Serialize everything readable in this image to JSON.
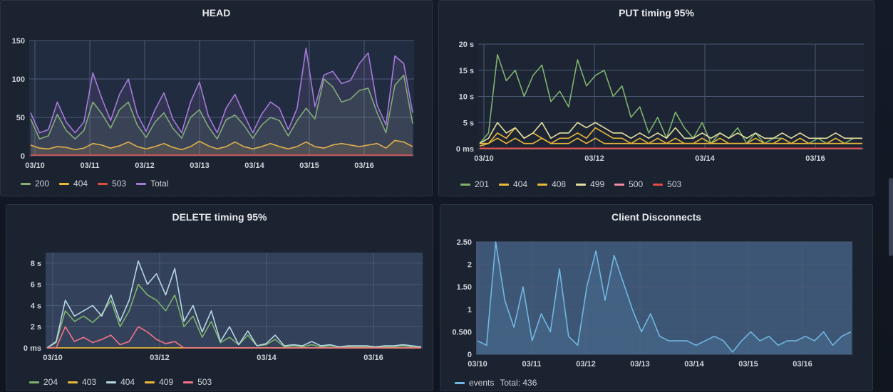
{
  "panels": {
    "head": {
      "title": "HEAD",
      "chart_data": {
        "type": "line",
        "title": "HEAD",
        "x_ticks": [
          "03/10",
          "03/11",
          "03/12",
          "03/13",
          "03/14",
          "03/15",
          "03/16"
        ],
        "y_ticks": [
          "0",
          "50",
          "100",
          "150"
        ],
        "ylim": [
          0,
          150
        ],
        "series": [
          {
            "name": "200",
            "color": "#7eb26d",
            "values": [
              48,
              22,
              26,
              54,
              33,
              22,
              33,
              70,
              55,
              36,
              60,
              70,
              40,
              24,
              44,
              56,
              36,
              23,
              50,
              60,
              38,
              22,
              47,
              53,
              40,
              23,
              40,
              50,
              46,
              26,
              46,
              62,
              48,
              100,
              90,
              70,
              74,
              85,
              88,
              56,
              30,
              92,
              105,
              42
            ]
          },
          {
            "name": "404",
            "color": "#eab839",
            "values": [
              14,
              10,
              9,
              12,
              11,
              8,
              10,
              16,
              14,
              10,
              13,
              18,
              12,
              9,
              12,
              16,
              11,
              8,
              12,
              19,
              13,
              9,
              12,
              18,
              12,
              9,
              12,
              16,
              12,
              9,
              12,
              18,
              12,
              10,
              14,
              16,
              14,
              12,
              14,
              16,
              10,
              20,
              18,
              12
            ]
          },
          {
            "name": "503",
            "color": "#e24d42",
            "values": [
              1,
              1,
              1,
              1,
              1,
              1,
              1,
              1,
              1,
              1,
              1,
              1,
              1,
              1,
              1,
              1,
              1,
              1,
              1,
              1,
              1,
              1,
              1,
              1,
              1,
              1,
              1,
              1,
              1,
              1,
              1,
              1,
              1,
              1,
              1,
              1,
              1,
              1,
              1,
              1,
              1,
              1,
              1,
              1
            ]
          },
          {
            "name": "Total",
            "color": "#a57bd8",
            "values": [
              56,
              30,
              34,
              70,
              44,
              30,
              44,
              108,
              75,
              46,
              80,
              100,
              54,
              32,
              60,
              82,
              48,
              30,
              70,
              96,
              52,
              30,
              62,
              80,
              54,
              30,
              54,
              70,
              62,
              34,
              62,
              140,
              64,
              105,
              110,
              94,
              98,
              120,
              134,
              66,
              40,
              130,
              120,
              56
            ]
          }
        ]
      },
      "legend": [
        {
          "label": "200",
          "color": "#7eb26d"
        },
        {
          "label": "404",
          "color": "#eab839"
        },
        {
          "label": "503",
          "color": "#e24d42"
        },
        {
          "label": "Total",
          "color": "#a57bd8"
        }
      ]
    },
    "put": {
      "title": "PUT timing 95%",
      "chart_data": {
        "type": "line",
        "title": "PUT timing 95%",
        "x_ticks": [
          "03/10",
          "03/12",
          "03/14",
          "03/16"
        ],
        "y_ticks": [
          "0 ms",
          "5 s",
          "10 s",
          "15 s",
          "20 s"
        ],
        "ylim": [
          0,
          20
        ],
        "series": [
          {
            "name": "201",
            "color": "#7eb26d",
            "values": [
              1,
              3,
              18,
              13,
              15,
              10,
              14,
              16,
              9,
              11,
              8,
              17,
              12,
              14,
              15,
              10,
              12,
              6,
              8,
              3,
              6,
              2,
              7,
              4,
              2,
              5,
              1,
              3,
              2,
              4,
              1,
              3,
              1,
              2,
              2,
              1,
              2,
              1,
              2,
              1,
              2,
              1,
              2,
              2
            ]
          },
          {
            "name": "404",
            "color": "#eab839",
            "values": [
              1,
              1,
              3,
              2,
              4,
              2,
              3,
              2,
              1,
              2,
              2,
              3,
              2,
              4,
              3,
              2,
              2,
              1,
              2,
              1,
              2,
              1,
              2,
              1,
              1,
              2,
              1,
              2,
              1,
              1,
              1,
              2,
              1,
              1,
              2,
              1,
              2,
              1,
              1,
              1,
              2,
              1,
              1,
              1
            ]
          },
          {
            "name": "408",
            "color": "#eab839",
            "values": [
              0.5,
              1,
              2,
              1,
              2,
              1,
              1,
              2,
              1,
              1,
              1,
              2,
              1,
              2,
              1,
              1,
              1,
              1,
              1,
              1,
              1,
              1,
              1,
              1,
              1,
              1,
              1,
              1,
              1,
              1,
              1,
              1,
              1,
              1,
              1,
              1,
              1,
              1,
              1,
              1,
              1,
              1,
              1,
              1
            ]
          },
          {
            "name": "499",
            "color": "#e5e0a0",
            "values": [
              1,
              2,
              5,
              3,
              4,
              2,
              3,
              5,
              2,
              3,
              3,
              5,
              4,
              5,
              4,
              3,
              3,
              2,
              3,
              2,
              3,
              2,
              4,
              2,
              2,
              3,
              2,
              3,
              2,
              3,
              2,
              3,
              2,
              2,
              3,
              2,
              3,
              2,
              2,
              2,
              3,
              2,
              2,
              2
            ]
          },
          {
            "name": "500",
            "color": "#f28ba0",
            "values": [
              0,
              0,
              0,
              0,
              0,
              0,
              0,
              0,
              0,
              0,
              0,
              0,
              0,
              0,
              0,
              0,
              0,
              0,
              0,
              0,
              0,
              0,
              0,
              0,
              0,
              0,
              0,
              0,
              0,
              0,
              0,
              0,
              0,
              0,
              0,
              0,
              0,
              0,
              0,
              0,
              0,
              0,
              0,
              0
            ]
          },
          {
            "name": "503",
            "color": "#e24d42",
            "values": [
              0.1,
              0.1,
              0.1,
              0.1,
              0.1,
              0.1,
              0.1,
              0.1,
              0.1,
              0.1,
              0.1,
              0.1,
              0.1,
              0.1,
              0.1,
              0.1,
              0.1,
              0.1,
              0.1,
              0.1,
              0.1,
              0.1,
              0.1,
              0.1,
              0.1,
              0.1,
              0.1,
              0.1,
              0.1,
              0.1,
              0.1,
              0.1,
              0.1,
              0.1,
              0.1,
              0.1,
              0.1,
              0.1,
              0.1,
              0.1,
              0.1,
              0.1,
              0.1,
              0.1
            ]
          }
        ]
      },
      "legend": [
        {
          "label": "201",
          "color": "#7eb26d"
        },
        {
          "label": "404",
          "color": "#eab839"
        },
        {
          "label": "408",
          "color": "#eab839"
        },
        {
          "label": "499",
          "color": "#e5e0a0"
        },
        {
          "label": "500",
          "color": "#f28ba0"
        },
        {
          "label": "503",
          "color": "#e24d42"
        }
      ]
    },
    "delete": {
      "title": "DELETE timing 95%",
      "chart_data": {
        "type": "line",
        "title": "DELETE timing 95%",
        "x_ticks": [
          "03/10",
          "03/12",
          "03/14",
          "03/16"
        ],
        "y_ticks": [
          "0 ms",
          "2 s",
          "4 s",
          "6 s",
          "8 s"
        ],
        "ylim": [
          0,
          9
        ],
        "series": [
          {
            "name": "204",
            "color": "#7eb26d",
            "values": [
              0,
              0.5,
              3.5,
              2.5,
              3,
              2.4,
              3.2,
              4.5,
              2,
              3.5,
              6,
              5,
              4.5,
              3.5,
              5,
              2,
              3,
              1,
              2.5,
              0.5,
              1,
              0.3,
              1.2,
              0.2,
              0.3,
              0.8,
              0.1,
              0.2,
              0.1,
              0.3,
              0.1,
              0.2,
              0.1,
              0.1,
              0.1,
              0.1,
              0.1,
              0.1,
              0.1,
              0.2,
              0.1,
              0.1
            ]
          },
          {
            "name": "403",
            "color": "#eab839",
            "values": [
              0,
              0,
              0,
              0,
              0,
              0,
              0,
              0,
              0,
              0,
              0,
              0,
              0,
              0,
              0,
              0,
              0,
              0,
              0,
              0,
              0,
              0,
              0,
              0,
              0,
              0,
              0,
              0,
              0,
              0,
              0,
              0,
              0,
              0,
              0,
              0,
              0,
              0,
              0,
              0,
              0,
              0
            ]
          },
          {
            "name": "404",
            "color": "#b6d6e4",
            "values": [
              0,
              0.6,
              4.5,
              3,
              3.5,
              4,
              3,
              5,
              2.5,
              4.5,
              8.2,
              6,
              7,
              5,
              7.5,
              2.5,
              4,
              1.5,
              3.5,
              0.6,
              2,
              0.3,
              1.6,
              0.2,
              0.4,
              1.2,
              0.2,
              0.3,
              0.2,
              0.6,
              0.2,
              0.3,
              0.1,
              0.2,
              0.2,
              0.2,
              0.1,
              0.2,
              0.2,
              0.3,
              0.2,
              0.1
            ]
          },
          {
            "name": "409",
            "color": "#eab839",
            "values": [
              0,
              0,
              0,
              0,
              0,
              0,
              0,
              0,
              0,
              0,
              0,
              0,
              0,
              0,
              0,
              0,
              0,
              0,
              0,
              0,
              0,
              0,
              0,
              0,
              0,
              0,
              0,
              0,
              0,
              0,
              0,
              0,
              0,
              0,
              0,
              0,
              0,
              0,
              0,
              0,
              0,
              0
            ]
          },
          {
            "name": "503",
            "color": "#f4738a",
            "values": [
              0,
              0,
              2,
              0.6,
              1,
              0.5,
              0.8,
              1.2,
              0.3,
              0.6,
              2,
              1.5,
              0.8,
              0.4,
              0.6,
              0,
              0,
              0,
              0,
              0,
              0,
              0,
              0,
              0,
              0,
              0,
              0,
              0,
              0,
              0,
              0,
              0,
              0,
              0,
              0,
              0,
              0,
              0,
              0,
              0,
              0,
              0
            ]
          }
        ]
      },
      "legend": [
        {
          "label": "204",
          "color": "#7eb26d"
        },
        {
          "label": "403",
          "color": "#eab839"
        },
        {
          "label": "404",
          "color": "#b6d6e4"
        },
        {
          "label": "409",
          "color": "#eab839"
        },
        {
          "label": "503",
          "color": "#f4738a"
        }
      ]
    },
    "clients": {
      "title": "Client Disconnects",
      "chart_data": {
        "type": "line",
        "title": "Client Disconnects",
        "x_ticks": [
          "03/10",
          "03/11",
          "03/12",
          "03/13",
          "03/14",
          "03/15",
          "03/16"
        ],
        "y_ticks": [
          "0",
          "0.500",
          "1",
          "1.50",
          "2",
          "2.50"
        ],
        "ylim": [
          0,
          2.5
        ],
        "series": [
          {
            "name": "events",
            "color": "#6fb7e0",
            "values": [
              0.3,
              0.2,
              2.5,
              1.2,
              0.6,
              1.5,
              0.3,
              0.9,
              0.5,
              1.9,
              0.4,
              0.2,
              1.5,
              2.3,
              1.2,
              2.2,
              1.6,
              1.0,
              0.5,
              0.9,
              0.4,
              0.3,
              0.3,
              0.3,
              0.2,
              0.3,
              0.4,
              0.3,
              0.05,
              0.3,
              0.5,
              0.3,
              0.4,
              0.2,
              0.3,
              0.3,
              0.4,
              0.3,
              0.5,
              0.2,
              0.4,
              0.5
            ]
          }
        ]
      },
      "legend": [
        {
          "label": "events",
          "color": "#6fb7e0"
        }
      ],
      "legend_total": "Total: 436"
    }
  }
}
